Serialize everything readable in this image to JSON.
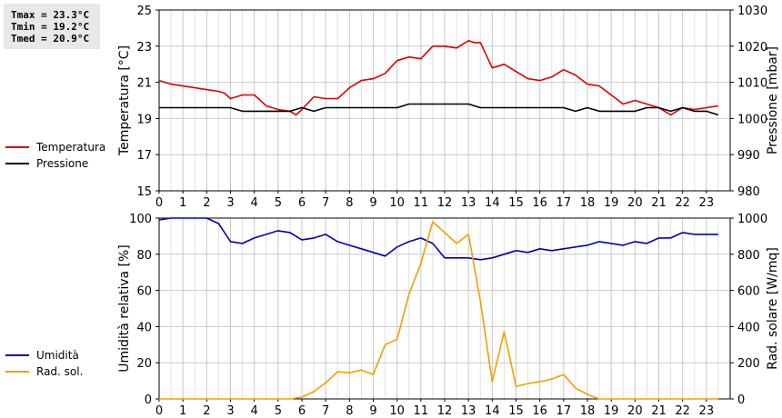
{
  "stats": {
    "tmax": "Tmax = 23.3°C",
    "tmin": "Tmin = 19.2°C",
    "tmed": "Tmed = 20.9°C"
  },
  "chart_data": [
    {
      "type": "line",
      "ylabel": "Temperatura [°C]",
      "y2label": "Pressione [mbar]",
      "xlim": [
        0,
        24
      ],
      "ylim": [
        15,
        25
      ],
      "y2lim": [
        980,
        1030
      ],
      "yticks": [
        15,
        17,
        19,
        21,
        23,
        25
      ],
      "y2ticks": [
        980,
        990,
        1000,
        1010,
        1020,
        1030
      ],
      "xticks": [
        "0",
        "1",
        "2",
        "3",
        "4",
        "5",
        "6",
        "7",
        "8",
        "9",
        "10",
        "11",
        "12",
        "13",
        "14",
        "15",
        "16",
        "17",
        "18",
        "19",
        "20",
        "21",
        "22",
        "23"
      ],
      "grid": true,
      "legend": "left",
      "series": [
        {
          "name": "Temperatura",
          "axis": "left",
          "color": "#dd0000",
          "x": [
            0,
            0.5,
            1,
            1.5,
            2,
            2.5,
            2.75,
            3,
            3.5,
            4,
            4.5,
            5,
            5.5,
            5.75,
            6,
            6.5,
            7,
            7.5,
            8,
            8.5,
            9,
            9.5,
            10,
            10.5,
            11,
            11.5,
            12,
            12.5,
            13,
            13.25,
            13.5,
            14,
            14.5,
            15,
            15.5,
            16,
            16.5,
            17,
            17.5,
            18,
            18.5,
            19,
            19.5,
            20,
            20.5,
            21,
            21.5,
            22,
            22.5,
            23,
            23.5
          ],
          "y": [
            21.1,
            20.9,
            20.8,
            20.7,
            20.6,
            20.5,
            20.4,
            20.1,
            20.3,
            20.3,
            19.7,
            19.5,
            19.4,
            19.2,
            19.5,
            20.2,
            20.1,
            20.1,
            20.7,
            21.1,
            21.2,
            21.5,
            22.2,
            22.4,
            22.3,
            23.0,
            23.0,
            22.9,
            23.3,
            23.2,
            23.2,
            21.8,
            22.0,
            21.6,
            21.2,
            21.1,
            21.3,
            21.7,
            21.4,
            20.9,
            20.8,
            20.3,
            19.8,
            20.0,
            19.8,
            19.6,
            19.2,
            19.6,
            19.5,
            19.6,
            19.7
          ]
        },
        {
          "name": "Pressione",
          "axis": "right",
          "color": "#000000",
          "x": [
            0,
            1,
            2,
            3,
            3.5,
            4,
            5,
            5.5,
            6,
            6.5,
            7,
            8,
            9,
            10,
            10.5,
            11,
            12,
            13,
            13.5,
            14,
            15,
            16,
            17,
            17.5,
            18,
            18.5,
            19,
            20,
            20.5,
            21,
            21.5,
            22,
            22.5,
            23,
            23.5
          ],
          "y": [
            1003,
            1003,
            1003,
            1003,
            1002,
            1002,
            1002,
            1002,
            1003,
            1002,
            1003,
            1003,
            1003,
            1003,
            1004,
            1004,
            1004,
            1004,
            1003,
            1003,
            1003,
            1003,
            1003,
            1002,
            1003,
            1002,
            1002,
            1002,
            1003,
            1003,
            1002,
            1003,
            1002,
            1002,
            1001
          ]
        }
      ]
    },
    {
      "type": "line",
      "ylabel": "Umidità relativa [%]",
      "y2label": "Rad. solare [W/mq]",
      "xlim": [
        0,
        24
      ],
      "ylim": [
        0,
        100
      ],
      "y2lim": [
        0,
        1000
      ],
      "yticks": [
        0,
        20,
        40,
        60,
        80,
        100
      ],
      "y2ticks": [
        0,
        200,
        400,
        600,
        800,
        1000
      ],
      "xticks": [
        "0",
        "1",
        "2",
        "3",
        "4",
        "5",
        "6",
        "7",
        "8",
        "9",
        "10",
        "11",
        "12",
        "13",
        "14",
        "15",
        "16",
        "17",
        "18",
        "19",
        "20",
        "21",
        "22",
        "23"
      ],
      "grid": true,
      "legend": "left",
      "series": [
        {
          "name": "Umidità",
          "axis": "left",
          "color": "#0000bb",
          "x": [
            0,
            0.5,
            1,
            1.5,
            2,
            2.5,
            3,
            3.5,
            4,
            4.5,
            5,
            5.5,
            6,
            6.5,
            7,
            7.5,
            8,
            8.5,
            9,
            9.5,
            10,
            10.5,
            11,
            11.5,
            12,
            12.5,
            13,
            13.5,
            14,
            14.5,
            15,
            15.5,
            16,
            16.5,
            17,
            17.5,
            18,
            18.5,
            19,
            19.5,
            20,
            20.5,
            21,
            21.5,
            22,
            22.5,
            23,
            23.5
          ],
          "y": [
            99,
            100,
            100,
            100,
            100,
            97,
            87,
            86,
            89,
            91,
            93,
            92,
            88,
            89,
            91,
            87,
            85,
            83,
            81,
            79,
            84,
            87,
            89,
            86,
            78,
            78,
            78,
            77,
            78,
            80,
            82,
            81,
            83,
            82,
            83,
            84,
            85,
            87,
            86,
            85,
            87,
            86,
            89,
            89,
            92,
            91,
            91,
            91
          ]
        },
        {
          "name": "Rad. sol.",
          "axis": "right",
          "color": "#f0a000",
          "x": [
            0,
            5,
            5.5,
            6,
            6.5,
            7,
            7.5,
            8,
            8.5,
            9,
            9.5,
            10,
            10.5,
            11,
            11.5,
            12,
            12.5,
            13,
            13.5,
            14,
            14.5,
            15,
            15.5,
            16,
            16.5,
            17,
            17.5,
            18,
            18.5,
            19,
            20,
            21,
            22,
            23,
            23.5
          ],
          "y": [
            0,
            0,
            0,
            10,
            40,
            90,
            150,
            145,
            160,
            135,
            300,
            330,
            580,
            750,
            980,
            920,
            860,
            910,
            540,
            95,
            370,
            70,
            85,
            95,
            110,
            135,
            60,
            25,
            0,
            0,
            0,
            0,
            0,
            0,
            0
          ]
        }
      ]
    }
  ]
}
